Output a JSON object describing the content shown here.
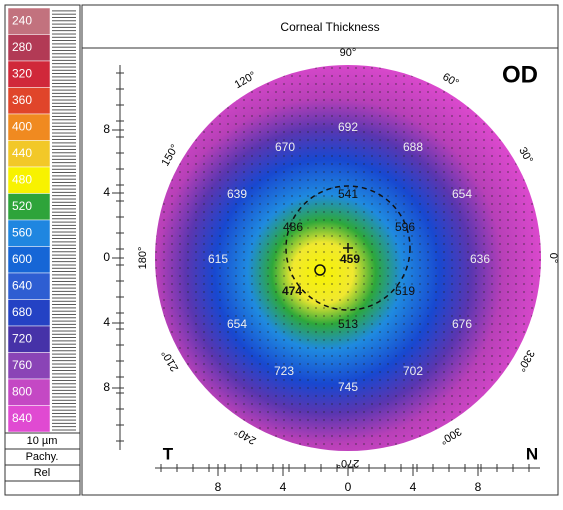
{
  "scale": {
    "items": [
      {
        "label": "240",
        "color": "#c2727e"
      },
      {
        "label": "280",
        "color": "#b23a55"
      },
      {
        "label": "320",
        "color": "#d0283a"
      },
      {
        "label": "360",
        "color": "#e0452a"
      },
      {
        "label": "400",
        "color": "#f08a20"
      },
      {
        "label": "440",
        "color": "#f2c828"
      },
      {
        "label": "480",
        "color": "#f8f200"
      },
      {
        "label": "520",
        "color": "#2ea43a"
      },
      {
        "label": "560",
        "color": "#1f86e0"
      },
      {
        "label": "600",
        "color": "#1666d6"
      },
      {
        "label": "640",
        "color": "#2e5ed2"
      },
      {
        "label": "680",
        "color": "#2442c4"
      },
      {
        "label": "720",
        "color": "#4632a8"
      },
      {
        "label": "760",
        "color": "#8a44b6"
      },
      {
        "label": "800",
        "color": "#c448c4"
      },
      {
        "label": "840",
        "color": "#e04ad2"
      }
    ],
    "step": "10 µm",
    "mode": "Pachy.",
    "ref": "Rel"
  },
  "header": {
    "title": "Corneal Thickness",
    "eye": "OD"
  },
  "angles": [
    "90°",
    "60°",
    "30°",
    "0°",
    "330°",
    "300°",
    "270°",
    "240°",
    "210°",
    "180°",
    "150°",
    "120°"
  ],
  "y_ticks": [
    "8",
    "4",
    "0",
    "4",
    "8"
  ],
  "x_ticks": [
    "8",
    "4",
    "0",
    "4",
    "8"
  ],
  "sides": {
    "left": "T",
    "right": "N"
  },
  "map_values": [
    692,
    670,
    688,
    639,
    541,
    654,
    486,
    596,
    615,
    459,
    636,
    474,
    519,
    654,
    513,
    676,
    723,
    702,
    745
  ]
}
